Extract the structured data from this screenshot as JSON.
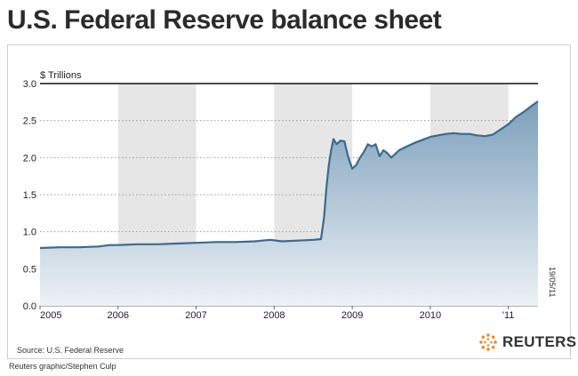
{
  "header": {
    "title": "U.S. Federal Reserve balance sheet"
  },
  "footer": {
    "source": "Source: U.S. Federal Reserve",
    "credit": "Reuters graphic/Stephen Culp",
    "date_stamp": "19/05/11",
    "brand": "REUTERS"
  },
  "colors": {
    "line": "#3a6a8d",
    "area_top": "#7c9fbb",
    "area_bottom": "#edf2f6",
    "shade": "#e6e6e6",
    "grid": "#9a9a9a"
  },
  "chart_data": {
    "type": "area",
    "title": "U.S. Federal Reserve balance sheet",
    "unit_label": "$ Trillions",
    "ylabel": "",
    "xlabel": "",
    "ylim": [
      0.0,
      3.0
    ],
    "xlim": [
      2005.0,
      2011.38
    ],
    "y_ticks": [
      "0.0",
      "0.5",
      "1.0",
      "1.5",
      "2.0",
      "2.5",
      "3.0"
    ],
    "y_tick_values": [
      0.0,
      0.5,
      1.0,
      1.5,
      2.0,
      2.5,
      3.0
    ],
    "x_ticks": [
      "2005",
      "2006",
      "2007",
      "2008",
      "2009",
      "2010",
      "'11"
    ],
    "x_tick_values": [
      2005.0,
      2006.0,
      2007.0,
      2008.0,
      2009.0,
      2010.0,
      2011.0
    ],
    "grid": true,
    "shaded_years": [
      [
        2006.0,
        2007.0
      ],
      [
        2008.0,
        2009.0
      ],
      [
        2010.0,
        2011.0
      ]
    ],
    "series": [
      {
        "x": [
          2005.0,
          2005.25,
          2005.5,
          2005.75,
          2005.9,
          2006.0,
          2006.25,
          2006.5,
          2006.75,
          2007.0,
          2007.25,
          2007.5,
          2007.75,
          2007.95,
          2008.1,
          2008.3,
          2008.5,
          2008.6,
          2008.64,
          2008.67,
          2008.7,
          2008.73,
          2008.76,
          2008.8,
          2008.85,
          2008.9,
          2008.95,
          2009.0,
          2009.05,
          2009.1,
          2009.15,
          2009.2,
          2009.25,
          2009.3,
          2009.35,
          2009.4,
          2009.45,
          2009.5,
          2009.55,
          2009.6,
          2009.7,
          2009.8,
          2009.9,
          2010.0,
          2010.1,
          2010.2,
          2010.3,
          2010.4,
          2010.5,
          2010.6,
          2010.7,
          2010.8,
          2010.9,
          2011.0,
          2011.1,
          2011.2,
          2011.3,
          2011.38
        ],
        "values": [
          0.78,
          0.79,
          0.79,
          0.8,
          0.82,
          0.82,
          0.83,
          0.83,
          0.84,
          0.85,
          0.86,
          0.86,
          0.87,
          0.89,
          0.87,
          0.88,
          0.89,
          0.9,
          1.2,
          1.6,
          1.9,
          2.1,
          2.25,
          2.18,
          2.23,
          2.22,
          2.0,
          1.85,
          1.9,
          2.0,
          2.08,
          2.18,
          2.15,
          2.18,
          2.02,
          2.1,
          2.06,
          2.0,
          2.05,
          2.1,
          2.15,
          2.2,
          2.24,
          2.28,
          2.3,
          2.32,
          2.33,
          2.32,
          2.32,
          2.3,
          2.29,
          2.31,
          2.38,
          2.45,
          2.55,
          2.62,
          2.7,
          2.76
        ]
      }
    ]
  }
}
